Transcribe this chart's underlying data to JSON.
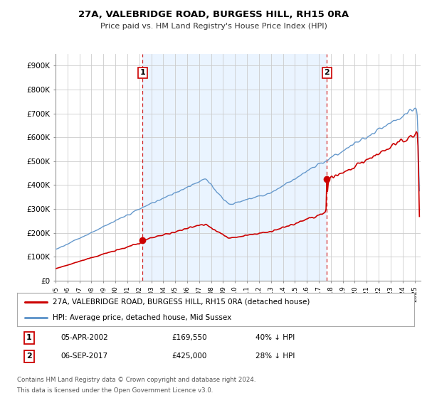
{
  "title": "27A, VALEBRIDGE ROAD, BURGESS HILL, RH15 0RA",
  "subtitle": "Price paid vs. HM Land Registry's House Price Index (HPI)",
  "ylabel_ticks": [
    "£0",
    "£100K",
    "£200K",
    "£300K",
    "£400K",
    "£500K",
    "£600K",
    "£700K",
    "£800K",
    "£900K"
  ],
  "ytick_values": [
    0,
    100000,
    200000,
    300000,
    400000,
    500000,
    600000,
    700000,
    800000,
    900000
  ],
  "ylim": [
    0,
    950000
  ],
  "xlim_start": 1995.0,
  "xlim_end": 2025.5,
  "t1_date": 2002.27,
  "t1_price": 169550,
  "t2_date": 2017.67,
  "t2_price": 425000,
  "legend_line1": "27A, VALEBRIDGE ROAD, BURGESS HILL, RH15 0RA (detached house)",
  "legend_line2": "HPI: Average price, detached house, Mid Sussex",
  "table_row1": [
    "1",
    "05-APR-2002",
    "£169,550",
    "40% ↓ HPI"
  ],
  "table_row2": [
    "2",
    "06-SEP-2017",
    "£425,000",
    "28% ↓ HPI"
  ],
  "footnote1": "Contains HM Land Registry data © Crown copyright and database right 2024.",
  "footnote2": "This data is licensed under the Open Government Licence v3.0.",
  "red_color": "#cc0000",
  "blue_color": "#6699cc",
  "blue_fill": "#ddeeff",
  "vline_color": "#cc0000",
  "background_color": "#ffffff",
  "grid_color": "#cccccc"
}
